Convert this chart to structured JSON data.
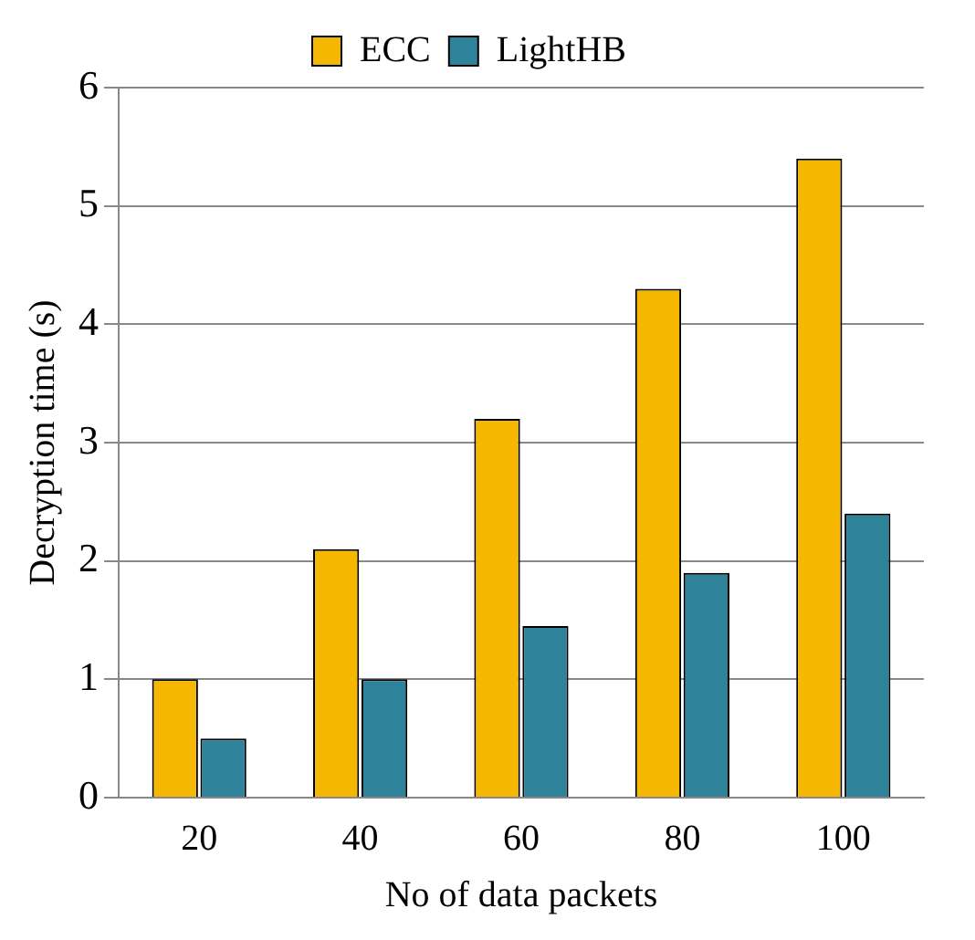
{
  "chart_data": {
    "type": "bar",
    "categories": [
      "20",
      "40",
      "60",
      "80",
      "100"
    ],
    "series": [
      {
        "name": "ECC",
        "color": "#f5b700",
        "values": [
          1.0,
          2.1,
          3.2,
          4.3,
          5.4
        ]
      },
      {
        "name": "LightHB",
        "color": "#2e8299",
        "values": [
          0.5,
          1.0,
          1.45,
          1.9,
          2.4
        ]
      }
    ],
    "xlabel": "No of data packets",
    "ylabel": "Decryption time (s)",
    "ylim": [
      0,
      6
    ],
    "yticks": [
      0,
      1,
      2,
      3,
      4,
      5,
      6
    ],
    "grid": "y",
    "legend": "top"
  }
}
